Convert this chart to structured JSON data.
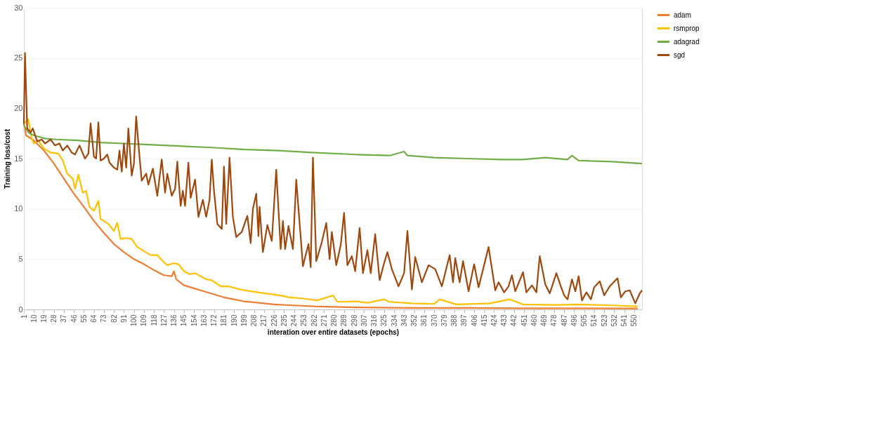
{
  "chart_data": {
    "type": "line",
    "xlabel": "interation over entire datasets (epochs)",
    "ylabel": "Training loss/cost",
    "xlim": [
      1,
      557
    ],
    "xticks": [
      1,
      10,
      19,
      28,
      37,
      46,
      55,
      64,
      73,
      82,
      91,
      100,
      109,
      118,
      127,
      136,
      145,
      154,
      163,
      172,
      181,
      190,
      199,
      208,
      217,
      226,
      235,
      244,
      253,
      262,
      271,
      280,
      289,
      298,
      307,
      316,
      325,
      334,
      343,
      352,
      361,
      370,
      379,
      388,
      397,
      406,
      415,
      424,
      433,
      442,
      451,
      460,
      469,
      478,
      487,
      496,
      505,
      514,
      523,
      532,
      541,
      550
    ],
    "ylim": [
      0,
      30
    ],
    "yticks": [
      0,
      5,
      10,
      15,
      20,
      25,
      30
    ],
    "grid": "y",
    "legend": "right",
    "line_style": "solid",
    "marker": "none",
    "series": [
      {
        "name": "adam",
        "color": "#ed7d31",
        "x": [
          1,
          3,
          10,
          19,
          28,
          37,
          46,
          55,
          64,
          73,
          82,
          91,
          100,
          109,
          118,
          127,
          134,
          136,
          138,
          145,
          154,
          163,
          172,
          181,
          190,
          199,
          208,
          217,
          226,
          244,
          262,
          280,
          300,
          350,
          400,
          450,
          500,
          553
        ],
        "values": [
          18.5,
          17.3,
          16.8,
          15.8,
          14.5,
          13.0,
          11.5,
          10.2,
          8.8,
          7.6,
          6.5,
          5.7,
          5.0,
          4.5,
          3.9,
          3.4,
          3.3,
          3.8,
          3.0,
          2.4,
          2.1,
          1.8,
          1.5,
          1.2,
          1.0,
          0.8,
          0.7,
          0.6,
          0.5,
          0.4,
          0.3,
          0.25,
          0.2,
          0.15,
          0.15,
          0.12,
          0.12,
          0.1
        ]
      },
      {
        "name": "rsmprop",
        "color": "#ffc000",
        "x": [
          1,
          5,
          8,
          10,
          14,
          19,
          25,
          32,
          36,
          40,
          45,
          47,
          50,
          54,
          57,
          60,
          64,
          68,
          70,
          77,
          82,
          85,
          88,
          93,
          98,
          103,
          109,
          115,
          121,
          126,
          130,
          136,
          140,
          145,
          150,
          155,
          160,
          165,
          170,
          178,
          185,
          195,
          205,
          218,
          231,
          240,
          251,
          265,
          279,
          283,
          300,
          310,
          325,
          330,
          350,
          370,
          375,
          390,
          420,
          438,
          450,
          480,
          500,
          530,
          553
        ],
        "values": [
          18.5,
          18.9,
          17.0,
          16.5,
          16.8,
          16.0,
          15.6,
          15.5,
          14.8,
          13.5,
          13.0,
          12.0,
          13.4,
          11.6,
          11.8,
          10.2,
          9.8,
          10.8,
          9.0,
          8.5,
          7.8,
          8.6,
          7.0,
          7.1,
          7.0,
          6.2,
          5.8,
          5.4,
          5.4,
          4.8,
          4.4,
          4.6,
          4.5,
          3.8,
          3.5,
          3.6,
          3.3,
          3.0,
          2.9,
          2.3,
          2.3,
          2.0,
          1.8,
          1.6,
          1.4,
          1.2,
          1.1,
          0.9,
          1.4,
          0.75,
          0.8,
          0.65,
          1.0,
          0.75,
          0.6,
          0.55,
          1.0,
          0.5,
          0.6,
          1.0,
          0.5,
          0.45,
          0.5,
          0.4,
          0.3
        ]
      },
      {
        "name": "adagrad",
        "color": "#70ad47",
        "x": [
          1,
          5,
          10,
          20,
          30,
          50,
          70,
          90,
          110,
          130,
          150,
          170,
          200,
          230,
          260,
          300,
          330,
          343,
          346,
          370,
          400,
          430,
          450,
          470,
          490,
          494,
          500,
          530,
          557
        ],
        "values": [
          18.3,
          17.6,
          17.3,
          17.0,
          16.9,
          16.8,
          16.6,
          16.5,
          16.4,
          16.3,
          16.2,
          16.1,
          15.9,
          15.8,
          15.6,
          15.4,
          15.3,
          15.7,
          15.3,
          15.1,
          15.0,
          14.9,
          14.9,
          15.1,
          14.9,
          15.3,
          14.8,
          14.7,
          14.5
        ]
      },
      {
        "name": "sgd",
        "color": "#9e480e",
        "x": [
          1,
          2,
          4,
          7,
          9,
          13,
          17,
          20,
          25,
          29,
          33,
          36,
          40,
          44,
          47,
          51,
          56,
          59,
          61,
          64,
          66,
          68,
          70,
          73,
          76,
          78,
          82,
          85,
          87,
          89,
          91,
          93,
          95,
          98,
          100,
          102,
          105,
          107,
          111,
          113,
          117,
          121,
          125,
          128,
          130,
          134,
          137,
          139,
          142,
          144,
          146,
          149,
          151,
          155,
          158,
          162,
          165,
          168,
          170,
          172,
          175,
          179,
          181,
          183,
          186,
          189,
          192,
          197,
          202,
          205,
          207,
          210,
          212,
          213,
          216,
          220,
          224,
          228,
          232,
          234,
          236,
          239,
          243,
          246,
          252,
          257,
          259,
          261,
          264,
          269,
          273,
          276,
          278,
          282,
          286,
          289,
          292,
          296,
          299,
          303,
          306,
          310,
          313,
          317,
          321,
          325,
          328,
          332,
          338,
          343,
          346,
          350,
          353,
          359,
          365,
          371,
          377,
          384,
          387,
          389,
          393,
          396,
          401,
          406,
          410,
          419,
          425,
          428,
          433,
          437,
          440,
          443,
          450,
          453,
          458,
          462,
          465,
          470,
          474,
          480,
          484,
          487,
          490,
          494,
          497,
          500,
          503,
          507,
          511,
          514,
          519,
          523,
          528,
          535,
          538,
          542,
          546,
          551,
          555,
          557
        ],
        "values": [
          18.4,
          25.5,
          18.0,
          17.6,
          18.0,
          16.7,
          16.9,
          16.5,
          16.9,
          16.3,
          16.5,
          15.8,
          16.3,
          15.6,
          15.4,
          16.3,
          15.0,
          15.5,
          18.5,
          15.2,
          15.0,
          18.6,
          14.8,
          15.0,
          15.4,
          14.6,
          14.1,
          13.9,
          15.8,
          13.7,
          16.5,
          14.1,
          18.0,
          13.3,
          14.5,
          19.2,
          15.2,
          12.8,
          13.5,
          12.4,
          14.0,
          11.3,
          14.9,
          11.6,
          13.5,
          11.3,
          12.0,
          14.7,
          10.3,
          11.8,
          10.3,
          14.6,
          11.1,
          12.9,
          9.2,
          10.9,
          9.2,
          10.9,
          14.9,
          11.8,
          8.5,
          8.0,
          14.2,
          8.5,
          15.1,
          9.2,
          7.2,
          7.7,
          9.3,
          6.6,
          10.0,
          11.5,
          7.3,
          10.2,
          5.7,
          8.4,
          6.8,
          13.9,
          6.0,
          8.8,
          6.0,
          8.3,
          6.0,
          12.9,
          4.3,
          6.5,
          4.2,
          15.1,
          4.8,
          6.7,
          8.6,
          5.0,
          7.7,
          4.4,
          6.4,
          9.6,
          4.4,
          5.3,
          3.8,
          8.1,
          3.6,
          5.9,
          3.6,
          7.5,
          2.9,
          4.6,
          5.7,
          4.0,
          2.3,
          3.6,
          7.8,
          2.0,
          5.2,
          2.7,
          4.4,
          4.0,
          2.3,
          5.4,
          2.7,
          5.1,
          2.7,
          4.8,
          1.8,
          4.5,
          2.2,
          6.2,
          1.9,
          2.7,
          1.7,
          2.3,
          3.4,
          1.8,
          3.7,
          1.7,
          2.4,
          1.7,
          5.3,
          2.5,
          1.6,
          3.6,
          2.3,
          1.4,
          1.0,
          3.0,
          1.8,
          3.3,
          0.9,
          1.7,
          1.0,
          2.2,
          2.8,
          1.4,
          2.3,
          3.1,
          1.2,
          1.8,
          1.9,
          0.6,
          1.6,
          1.9
        ]
      }
    ]
  }
}
